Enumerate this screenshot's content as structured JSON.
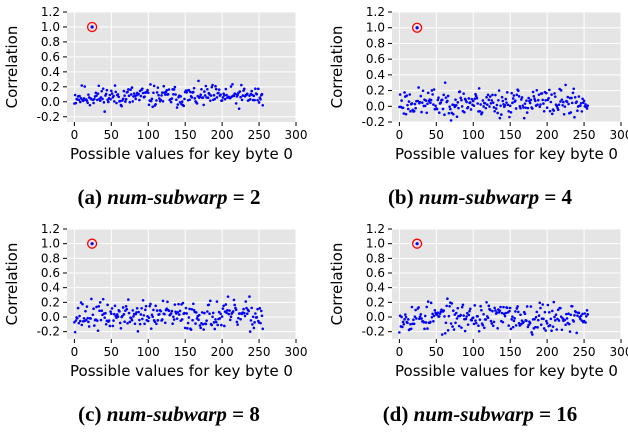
{
  "chart_data": [
    {
      "type": "scatter",
      "ylabel": "Correlation",
      "xlabel": "Possible values for key byte 0",
      "xlim": [
        -10,
        300
      ],
      "ylim": [
        -0.27,
        1.2
      ],
      "xticks": [
        "0",
        "50",
        "100",
        "150",
        "200",
        "250",
        "300"
      ],
      "yticks": [
        "-0.2",
        "0.0",
        "0.2",
        "0.4",
        "0.6",
        "0.8",
        "1.0",
        "1.2"
      ],
      "ytick_values": [
        -0.2,
        0.0,
        0.2,
        0.4,
        0.6,
        0.8,
        1.0,
        1.2
      ],
      "highlight": {
        "x": 24,
        "y": 1.0
      },
      "noise": {
        "mean": 0.07,
        "spread": 0.22,
        "seed": 11
      },
      "grid": true,
      "background": "#e5e5e5",
      "point_color": "#0000ff",
      "highlight_color": "#ff0000",
      "caption": {
        "letter": "(a)",
        "var": "num-subwarp",
        "eq": "=",
        "value": "2"
      }
    },
    {
      "type": "scatter",
      "ylabel": "Correlation",
      "xlabel": "Possible values for key byte 0",
      "xlim": [
        -10,
        300
      ],
      "ylim": [
        -0.2,
        1.2
      ],
      "xticks": [
        "0",
        "50",
        "100",
        "150",
        "200",
        "250",
        "300"
      ],
      "yticks": [
        "-0.2",
        "0.0",
        "0.2",
        "0.4",
        "0.6",
        "0.8",
        "1.0",
        "1.2"
      ],
      "ytick_values": [
        -0.2,
        0.0,
        0.2,
        0.4,
        0.6,
        0.8,
        1.0,
        1.2
      ],
      "highlight": {
        "x": 24,
        "y": 1.0
      },
      "noise": {
        "mean": 0.05,
        "spread": 0.27,
        "seed": 23
      },
      "grid": true,
      "background": "#e5e5e5",
      "point_color": "#0000ff",
      "highlight_color": "#ff0000",
      "caption": {
        "letter": "(b)",
        "var": "num-subwarp",
        "eq": "=",
        "value": "4"
      }
    },
    {
      "type": "scatter",
      "ylabel": "Correlation",
      "xlabel": "Possible values for key byte 0",
      "xlim": [
        -10,
        300
      ],
      "ylim": [
        -0.3,
        1.2
      ],
      "xticks": [
        "0",
        "50",
        "100",
        "150",
        "200",
        "250",
        "300"
      ],
      "yticks": [
        "-0.2",
        "0.0",
        "0.2",
        "0.4",
        "0.6",
        "0.8",
        "1.0",
        "1.2"
      ],
      "ytick_values": [
        -0.2,
        0.0,
        0.2,
        0.4,
        0.6,
        0.8,
        1.0,
        1.2
      ],
      "highlight": {
        "x": 24,
        "y": 1.0
      },
      "noise": {
        "mean": 0.02,
        "spread": 0.3,
        "seed": 37
      },
      "grid": true,
      "background": "#e5e5e5",
      "point_color": "#0000ff",
      "highlight_color": "#ff0000",
      "caption": {
        "letter": "(c)",
        "var": "num-subwarp",
        "eq": "=",
        "value": "8"
      }
    },
    {
      "type": "scatter",
      "ylabel": "Correlation",
      "xlabel": "Possible values for key byte 0",
      "xlim": [
        -10,
        300
      ],
      "ylim": [
        -0.3,
        1.2
      ],
      "xticks": [
        "0",
        "50",
        "100",
        "150",
        "200",
        "250",
        "300"
      ],
      "yticks": [
        "-0.2",
        "0.0",
        "0.2",
        "0.4",
        "0.6",
        "0.8",
        "1.0",
        "1.2"
      ],
      "ytick_values": [
        -0.2,
        0.0,
        0.2,
        0.4,
        0.6,
        0.8,
        1.0,
        1.2
      ],
      "highlight": {
        "x": 24,
        "y": 1.0
      },
      "noise": {
        "mean": 0.0,
        "spread": 0.3,
        "seed": 53
      },
      "grid": true,
      "background": "#e5e5e5",
      "point_color": "#0000ff",
      "highlight_color": "#ff0000",
      "caption": {
        "letter": "(d)",
        "var": "num-subwarp",
        "eq": "=",
        "value": "16"
      }
    }
  ]
}
